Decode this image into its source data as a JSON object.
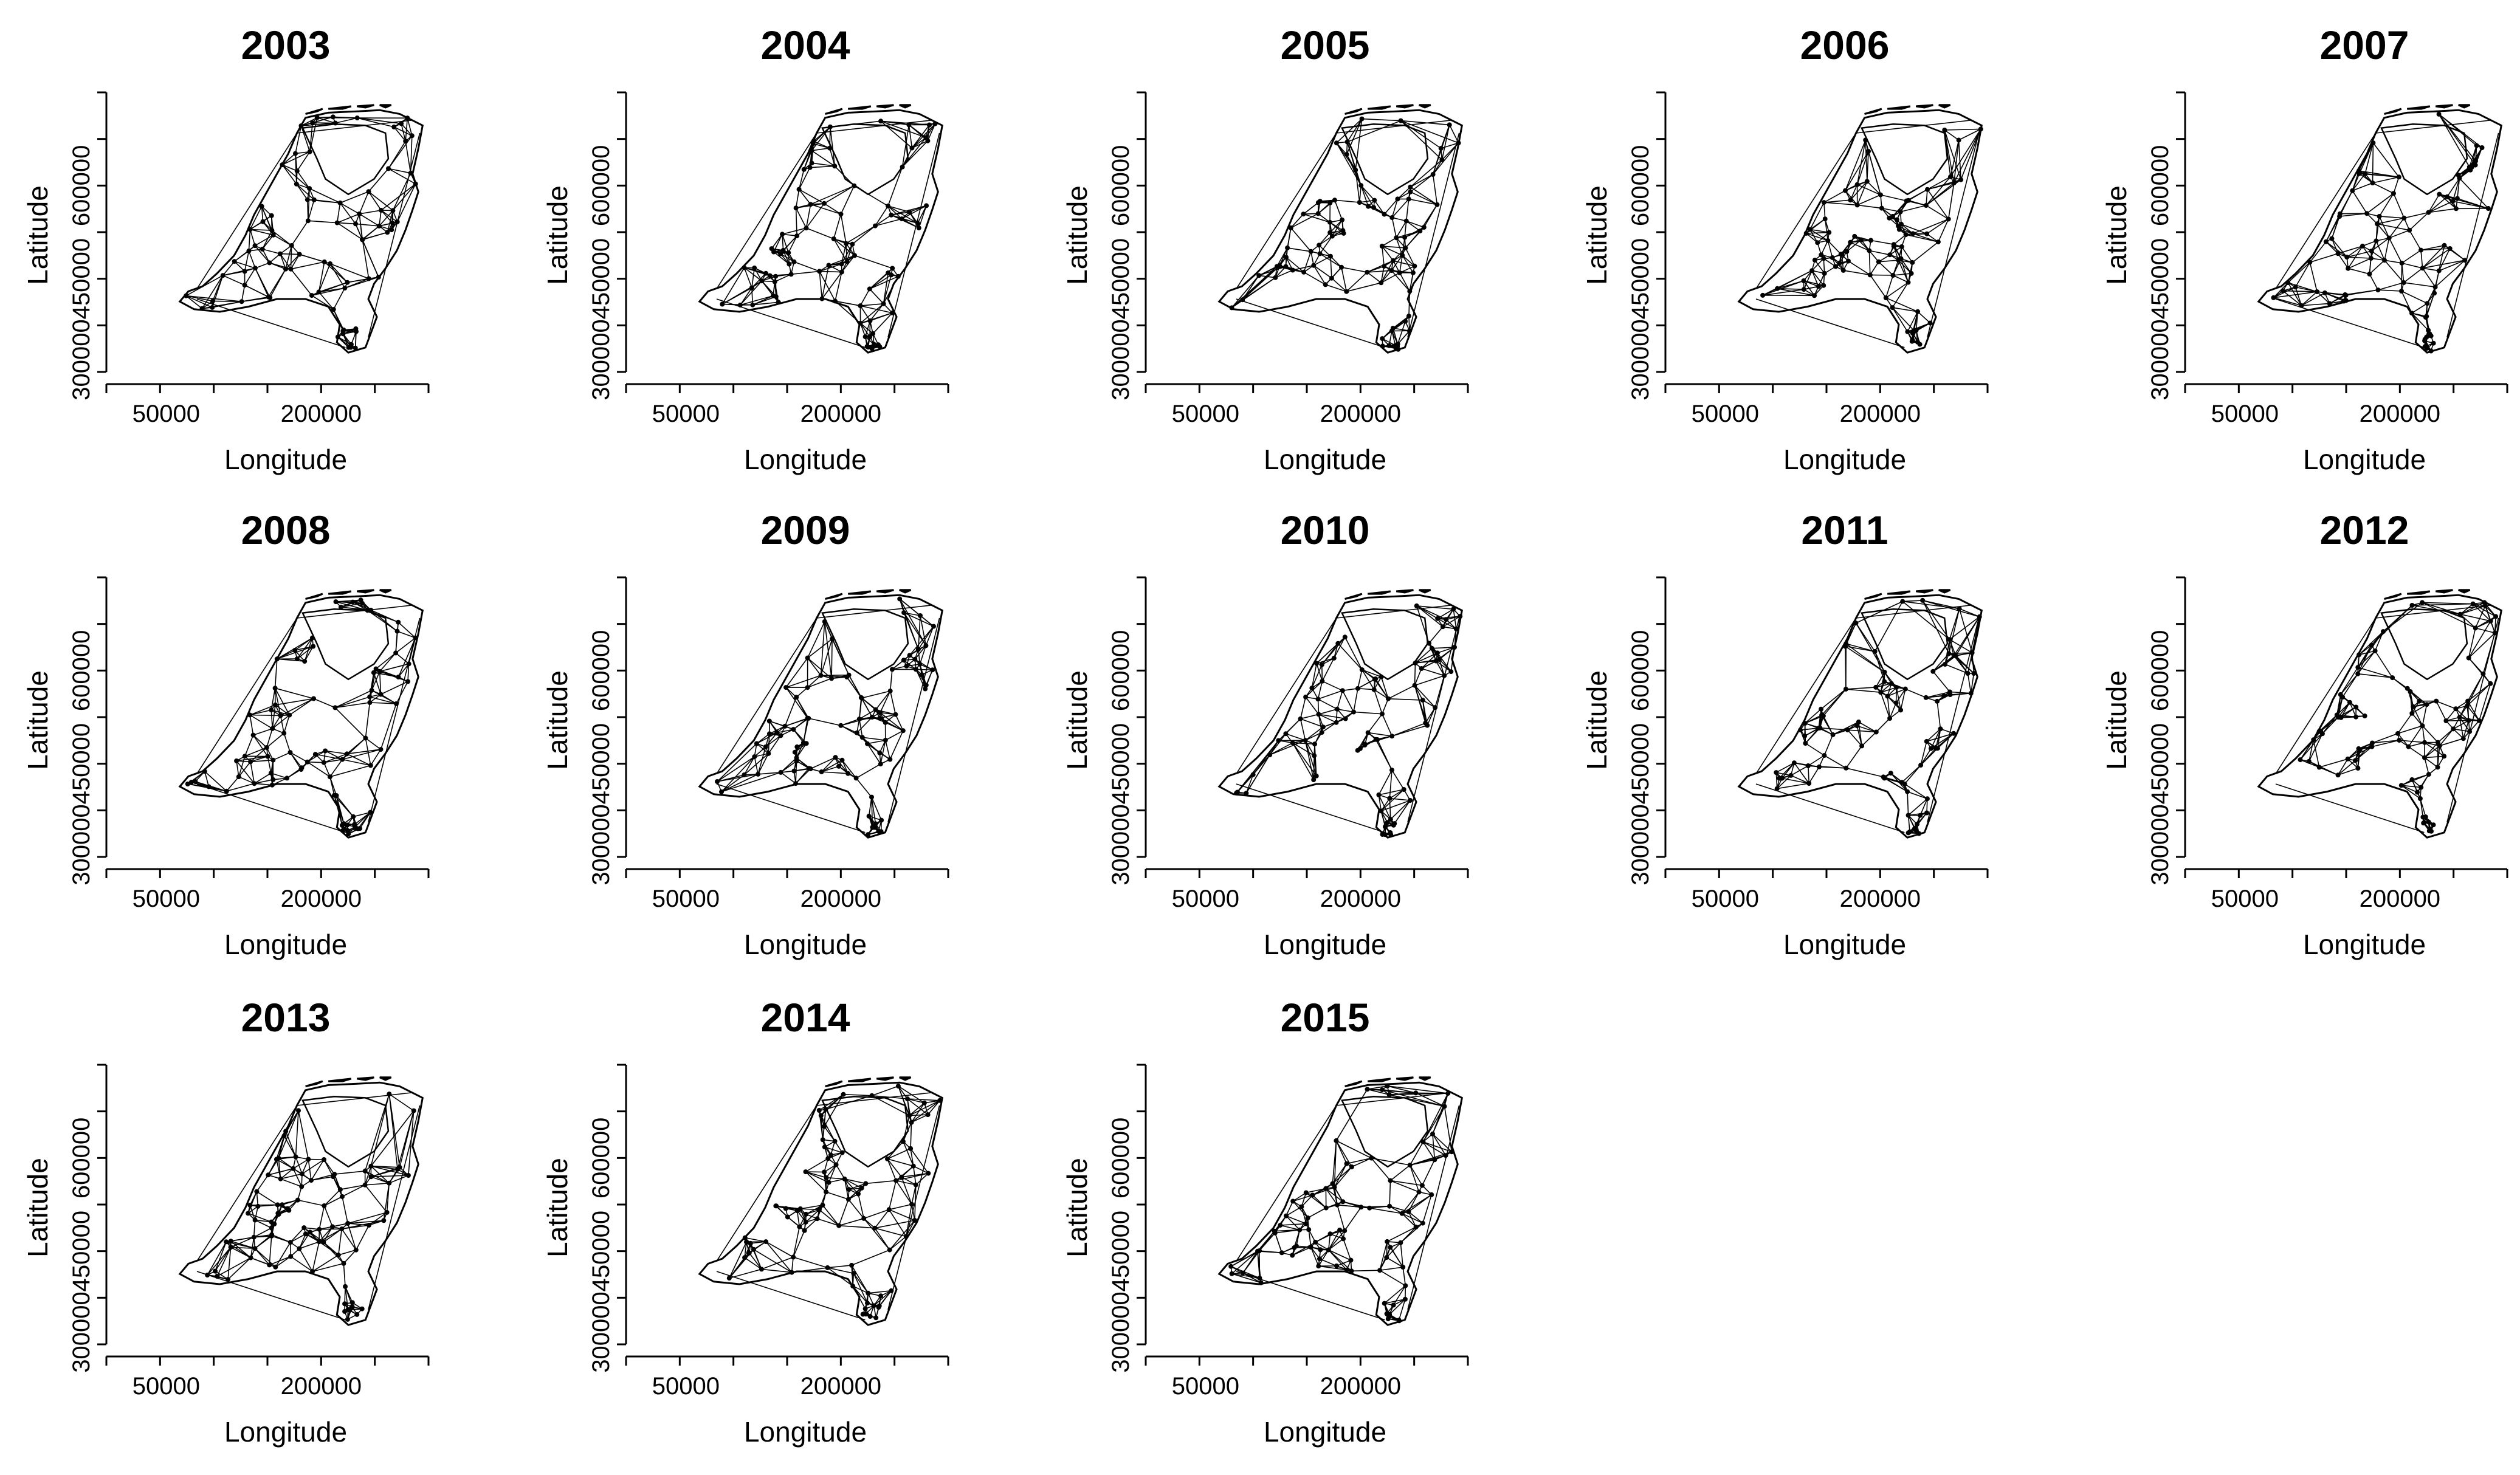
{
  "figure": {
    "panels": [
      {
        "year": "2003",
        "xlabel": "Longitude",
        "ylabel": "Latitude"
      },
      {
        "year": "2004",
        "xlabel": "Longitude",
        "ylabel": "Latitude"
      },
      {
        "year": "2005",
        "xlabel": "Longitude",
        "ylabel": "Latitude"
      },
      {
        "year": "2006",
        "xlabel": "Longitude",
        "ylabel": "Latitude"
      },
      {
        "year": "2007",
        "xlabel": "Longitude",
        "ylabel": "Latitude"
      },
      {
        "year": "2008",
        "xlabel": "Longitude",
        "ylabel": "Latitude"
      },
      {
        "year": "2009",
        "xlabel": "Longitude",
        "ylabel": "Latitude"
      },
      {
        "year": "2010",
        "xlabel": "Longitude",
        "ylabel": "Latitude"
      },
      {
        "year": "2011",
        "xlabel": "Longitude",
        "ylabel": "Latitude"
      },
      {
        "year": "2012",
        "xlabel": "Longitude",
        "ylabel": "Latitude"
      },
      {
        "year": "2013",
        "xlabel": "Longitude",
        "ylabel": "Latitude"
      },
      {
        "year": "2014",
        "xlabel": "Longitude",
        "ylabel": "Latitude"
      },
      {
        "year": "2015",
        "xlabel": "Longitude",
        "ylabel": "Latitude"
      }
    ],
    "x_tick_labels": [
      "50000",
      "200000"
    ],
    "y_tick_labels": [
      "300000",
      "450000",
      "600000"
    ],
    "x_range": [
      0,
      300000
    ],
    "y_range": [
      300000,
      630000
    ],
    "map_region": "Netherlands",
    "mark_style": "triangulation mesh over outline",
    "line_color": "#000000",
    "background_color": "#ffffff"
  }
}
